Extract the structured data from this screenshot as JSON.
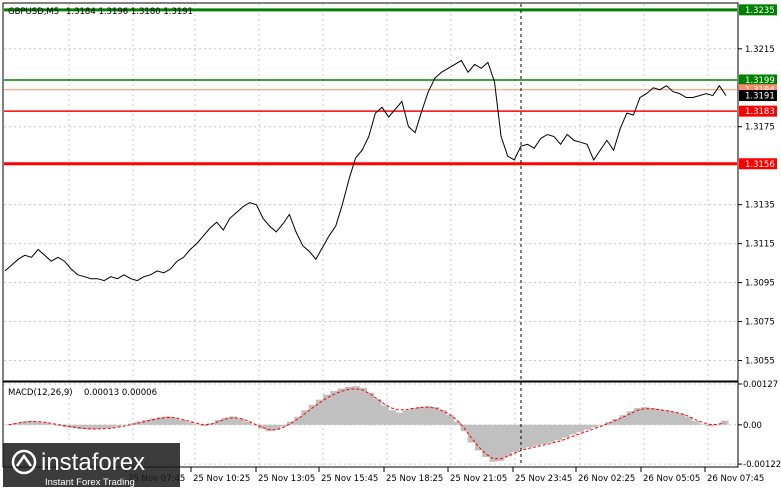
{
  "header": {
    "instrument": "GBPUSD,M5",
    "quote": "1.3184 1.3196 1.3180 1.3191"
  },
  "macd_header": {
    "label": "MACD(12,26,9)",
    "values": "0.00013 0.00006"
  },
  "watermark": {
    "brand": "instaforex",
    "tagline": "Instant Forex Trading"
  },
  "colors": {
    "price_line": "#000000",
    "green_level": "#008000",
    "red_level": "#ff0000",
    "macd_hist": "#c0c0c0",
    "macd_signal": "#ff0000",
    "grid": "#c8c8c8"
  },
  "chart_data": [
    {
      "type": "line",
      "ylim": [
        1.3045,
        1.3238
      ],
      "x_tick_labels": [
        "25 Nov 07:45",
        "25 Nov 10:25",
        "25 Nov 13:05",
        "25 Nov 15:45",
        "25 Nov 18:25",
        "25 Nov 21:05",
        "25 Nov 23:45",
        "26 Nov 02:25",
        "26 Nov 05:05",
        "26 Nov 07:45"
      ],
      "y_ticks": [
        {
          "value": 1.3215,
          "label": "1.3215"
        },
        {
          "value": 1.3175,
          "label": "1.3175"
        },
        {
          "value": 1.3135,
          "label": "1.3135"
        },
        {
          "value": 1.3115,
          "label": "1.3115"
        },
        {
          "value": 1.3095,
          "label": "1.3095"
        },
        {
          "value": 1.3075,
          "label": "1.3075"
        },
        {
          "value": 1.3055,
          "label": "1.3055"
        }
      ],
      "levels": [
        {
          "value": 1.3235,
          "label": "1.3235",
          "color": "#008000",
          "style": "solid-thick"
        },
        {
          "value": 1.3199,
          "label": "1.3199",
          "color": "#008000",
          "style": "solid"
        },
        {
          "value": 1.3194,
          "label": "1.3194",
          "color": "#ff8c69",
          "style": "thin"
        },
        {
          "value": 1.3183,
          "label": "1.3183",
          "color": "#ff0000",
          "style": "solid"
        },
        {
          "value": 1.3156,
          "label": "1.3156",
          "color": "#ff0000",
          "style": "solid-thick"
        }
      ],
      "current_price": {
        "value": 1.3191,
        "label": "1.3191"
      },
      "series": [
        {
          "values": [
            1.3101,
            1.3104,
            1.3107,
            1.3109,
            1.3108,
            1.3112,
            1.3109,
            1.3106,
            1.3108,
            1.3106,
            1.3102,
            1.3099,
            1.3098,
            1.3097,
            1.3097,
            1.3096,
            1.3098,
            1.3097,
            1.3099,
            1.3097,
            1.3096,
            1.3098,
            1.3099,
            1.3101,
            1.31,
            1.3102,
            1.3106,
            1.3108,
            1.3112,
            1.3115,
            1.3119,
            1.3123,
            1.3126,
            1.3122,
            1.3128,
            1.3131,
            1.3134,
            1.3136,
            1.3135,
            1.3128,
            1.3124,
            1.3121,
            1.3125,
            1.313,
            1.3121,
            1.3114,
            1.3111,
            1.3107,
            1.3113,
            1.3119,
            1.3124,
            1.3135,
            1.3148,
            1.3159,
            1.3163,
            1.317,
            1.3182,
            1.3185,
            1.318,
            1.3184,
            1.3188,
            1.3175,
            1.3172,
            1.3183,
            1.3193,
            1.32,
            1.3203,
            1.3205,
            1.3207,
            1.3209,
            1.3203,
            1.3207,
            1.3205,
            1.3208,
            1.3198,
            1.317,
            1.316,
            1.3158,
            1.3165,
            1.3166,
            1.3164,
            1.3169,
            1.3171,
            1.317,
            1.3166,
            1.3171,
            1.3168,
            1.3167,
            1.3166,
            1.3158,
            1.3163,
            1.3168,
            1.3163,
            1.3174,
            1.3182,
            1.3181,
            1.319,
            1.3192,
            1.3195,
            1.3194,
            1.3196,
            1.3193,
            1.3192,
            1.319,
            1.319,
            1.3191,
            1.3192,
            1.3191,
            1.3196,
            1.3191
          ]
        }
      ]
    },
    {
      "type": "bar",
      "ylim": [
        -0.00128,
        0.0013
      ],
      "y_ticks": [
        {
          "value": 0.00127,
          "label": "0.00127"
        },
        {
          "value": 0.0,
          "label": "0.00"
        },
        {
          "value": -0.00122,
          "label": "-0.00122"
        }
      ],
      "series": [
        {
          "values": [
            1e-05,
            5e-05,
            0.0001,
            0.00012,
            0.0001,
            7e-05,
            2e-05,
            -3e-05,
            -7e-05,
            -0.0001,
            -0.00013,
            -0.00015,
            -0.00014,
            -0.00012,
            -0.0001,
            -6e-05,
            -1e-05,
            4e-05,
            0.0001,
            0.00015,
            0.0002,
            0.00024,
            0.00026,
            0.00022,
            0.00015,
            8e-05,
            2e-05,
            -4e-05,
            5e-05,
            0.00015,
            0.00022,
            0.00026,
            0.0002,
            0.0001,
            -2e-05,
            -0.00012,
            -0.0002,
            -0.00016,
            -5e-05,
            0.0001,
            0.00025,
            0.00045,
            0.00062,
            0.00078,
            0.00094,
            0.00105,
            0.00113,
            0.00118,
            0.0012,
            0.00115,
            0.001,
            0.0008,
            0.0006,
            0.00045,
            0.00038,
            0.00045,
            0.00052,
            0.00056,
            0.00058,
            0.00055,
            0.00045,
            0.0003,
            0.0001,
            -0.0002,
            -0.00055,
            -0.0008,
            -0.001,
            -0.00115,
            -0.00112,
            -0.00098,
            -0.00085,
            -0.00075,
            -0.0007,
            -0.00065,
            -0.0006,
            -0.00055,
            -0.00048,
            -0.0004,
            -0.0003,
            -0.00022,
            -0.00015,
            -8e-05,
            0.0,
            8e-05,
            0.00018,
            0.0003,
            0.00042,
            0.00052,
            0.00055,
            0.00052,
            0.00048,
            0.00045,
            0.0004,
            0.00035,
            0.00025,
            0.00012,
            2e-05,
            -5e-05,
            0.0,
            0.00013
          ]
        },
        {
          "values": [
            0.0,
            4e-05,
            8e-05,
            0.0001,
            0.0001,
            8e-05,
            4e-05,
            0.0,
            -4e-05,
            -7e-05,
            -0.0001,
            -0.00012,
            -0.00013,
            -0.00012,
            -0.00011,
            -8e-05,
            -4e-05,
            1e-05,
            6e-05,
            0.00011,
            0.00016,
            0.0002,
            0.00023,
            0.00022,
            0.00017,
            0.00011,
            5e-05,
            0.0,
            2e-05,
            0.0001,
            0.00018,
            0.00022,
            0.0002,
            0.00013,
            3e-05,
            -7e-05,
            -0.00015,
            -0.00016,
            -8e-05,
            4e-05,
            0.00018,
            0.00035,
            0.00052,
            0.00068,
            0.00083,
            0.00095,
            0.00104,
            0.0011,
            0.00112,
            0.00108,
            0.00096,
            0.0008,
            0.00064,
            0.00052,
            0.00046,
            0.00047,
            0.00051,
            0.00054,
            0.00055,
            0.00052,
            0.00044,
            0.00032,
            0.00015,
            -0.0001,
            -0.0004,
            -0.00068,
            -0.0009,
            -0.00105,
            -0.00106,
            -0.00098,
            -0.00088,
            -0.00079,
            -0.00073,
            -0.00068,
            -0.00063,
            -0.00058,
            -0.00052,
            -0.00045,
            -0.00036,
            -0.00028,
            -0.0002,
            -0.00012,
            -4e-05,
            5e-05,
            0.00014,
            0.00024,
            0.00035,
            0.00045,
            0.0005,
            0.0005,
            0.00047,
            0.00044,
            0.0004,
            0.00035,
            0.00027,
            0.00016,
            7e-05,
            1e-05,
            1e-05,
            6e-05
          ]
        }
      ]
    }
  ]
}
